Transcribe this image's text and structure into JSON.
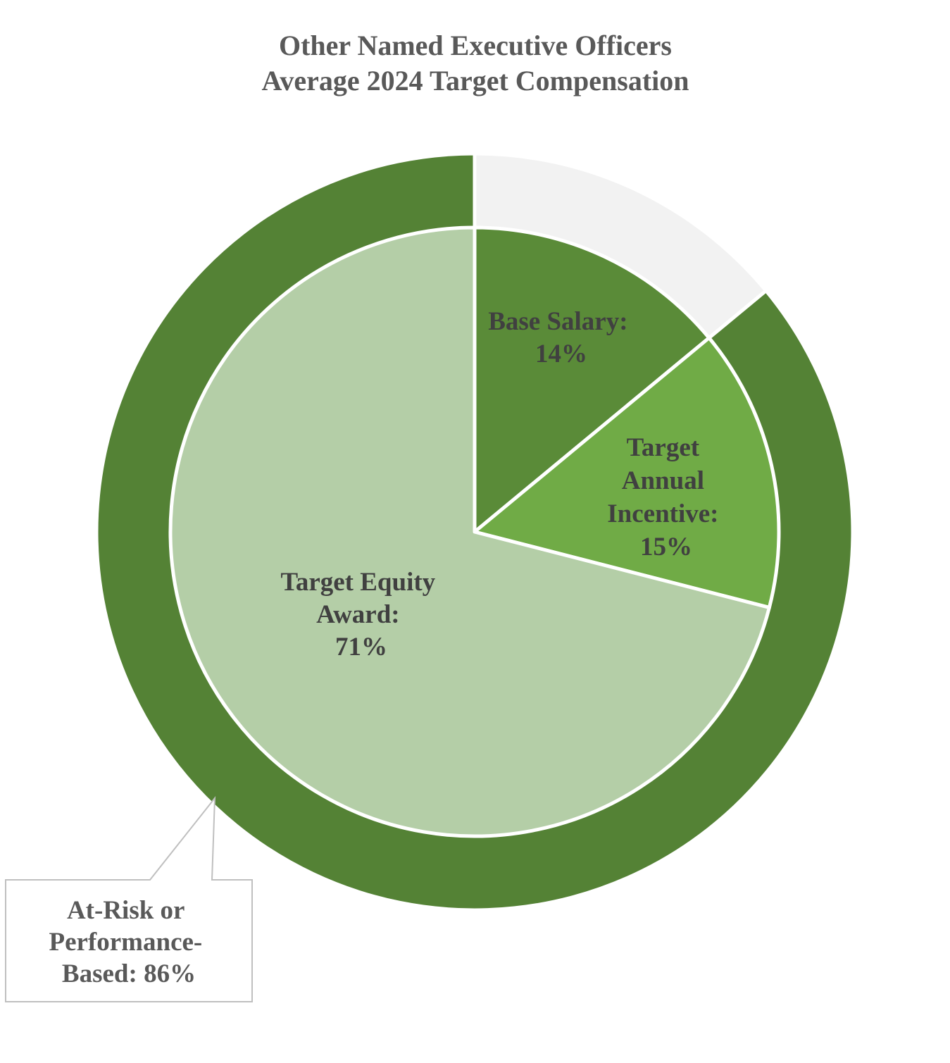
{
  "chart_data": {
    "type": "pie",
    "title": [
      "Other Named Executive Officers",
      "Average 2024 Target Compensation"
    ],
    "inner_pie": {
      "slices": [
        {
          "key": "base",
          "label": "Base Salary:",
          "value": 14,
          "value_label": "14%",
          "color": "#5a8b38"
        },
        {
          "key": "annual",
          "label": "Target Annual Incentive:",
          "value": 15,
          "value_label": "15%",
          "color": "#70ab46"
        },
        {
          "key": "equity",
          "label": "Target Equity Award:",
          "value": 71,
          "value_label": "71%",
          "color": "#b4cea7"
        }
      ]
    },
    "outer_ring": {
      "slices": [
        {
          "key": "fixed",
          "value": 14,
          "color": "#f2f2f2"
        },
        {
          "key": "at_risk",
          "value": 86,
          "color": "#548235"
        }
      ]
    },
    "callout": {
      "lines": [
        "At-Risk or",
        "Performance-",
        "Based: 86%"
      ]
    }
  }
}
